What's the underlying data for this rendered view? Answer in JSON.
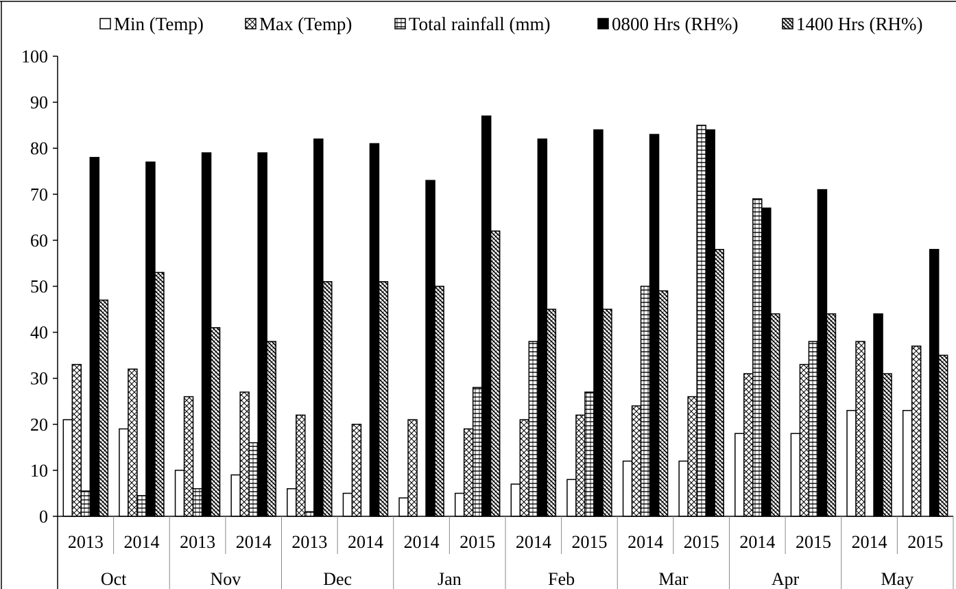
{
  "chart_data": {
    "type": "bar",
    "title": "",
    "xlabel": "",
    "ylabel": "",
    "ylim": [
      0,
      100
    ],
    "yticks": [
      0,
      10,
      20,
      30,
      40,
      50,
      60,
      70,
      80,
      90,
      100
    ],
    "grid": false,
    "legend_placement": "top",
    "months": [
      "Oct",
      "Nov",
      "Dec",
      "Jan",
      "Feb",
      "Mar",
      "Apr",
      "May"
    ],
    "categories": [
      {
        "month": "Oct",
        "year": "2013"
      },
      {
        "month": "Oct",
        "year": "2014"
      },
      {
        "month": "Nov",
        "year": "2013"
      },
      {
        "month": "Nov",
        "year": "2014"
      },
      {
        "month": "Dec",
        "year": "2013"
      },
      {
        "month": "Dec",
        "year": "2014"
      },
      {
        "month": "Jan",
        "year": "2014"
      },
      {
        "month": "Jan",
        "year": "2015"
      },
      {
        "month": "Feb",
        "year": "2014"
      },
      {
        "month": "Feb",
        "year": "2015"
      },
      {
        "month": "Mar",
        "year": "2014"
      },
      {
        "month": "Mar",
        "year": "2015"
      },
      {
        "month": "Apr",
        "year": "2014"
      },
      {
        "month": "Apr",
        "year": "2015"
      },
      {
        "month": "May",
        "year": "2014"
      },
      {
        "month": "May",
        "year": "2015"
      }
    ],
    "series": [
      {
        "name": "Min (Temp)",
        "pattern": "blank",
        "values": [
          21,
          19,
          10,
          9,
          6,
          5,
          4,
          5,
          7,
          8,
          12,
          12,
          18,
          18,
          23,
          23
        ]
      },
      {
        "name": "Max (Temp)",
        "pattern": "cross",
        "values": [
          33,
          32,
          26,
          27,
          22,
          20,
          21,
          19,
          21,
          22,
          24,
          26,
          31,
          33,
          38,
          37
        ]
      },
      {
        "name": "Total rainfall (mm)",
        "pattern": "hlines",
        "values": [
          5.5,
          4.5,
          6,
          16,
          1,
          0,
          0,
          28,
          38,
          27,
          50,
          85,
          69,
          38,
          0,
          0
        ]
      },
      {
        "name": "0800 Hrs (RH%)",
        "pattern": "solid",
        "values": [
          78,
          77,
          79,
          79,
          82,
          81,
          73,
          87,
          82,
          84,
          83,
          84,
          67,
          71,
          44,
          58
        ]
      },
      {
        "name": "1400 Hrs (RH%)",
        "pattern": "diag",
        "values": [
          47,
          53,
          41,
          38,
          51,
          51,
          50,
          62,
          45,
          45,
          49,
          58,
          44,
          44,
          31,
          35
        ]
      }
    ]
  },
  "colors": {
    "bar_stroke": "#000000",
    "pattern_ink": "#000000",
    "background": "#ffffff"
  }
}
